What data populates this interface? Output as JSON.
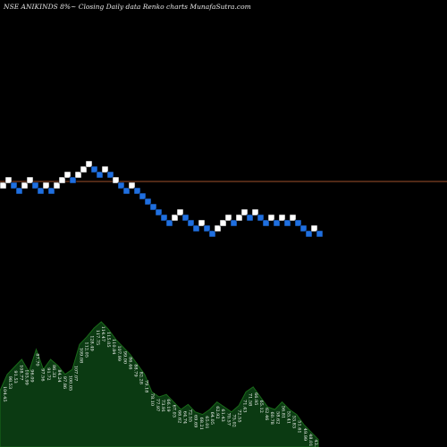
{
  "header": {
    "text": "NSE ANIKINDS 8%~  Closing  Daily data  Renko  charts MunafaSutra.com"
  },
  "chart_data": {
    "type": "renko",
    "symbol": "NSE ANIKINDS",
    "box_size_label": "8%",
    "bricks": [
      {
        "col": 0,
        "row": 6,
        "color": "white"
      },
      {
        "col": 1,
        "row": 5,
        "color": "white"
      },
      {
        "col": 2,
        "row": 6,
        "color": "blue"
      },
      {
        "col": 3,
        "row": 7,
        "color": "blue"
      },
      {
        "col": 4,
        "row": 6,
        "color": "white"
      },
      {
        "col": 5,
        "row": 5,
        "color": "white"
      },
      {
        "col": 6,
        "row": 6,
        "color": "blue"
      },
      {
        "col": 7,
        "row": 7,
        "color": "blue"
      },
      {
        "col": 8,
        "row": 6,
        "color": "white"
      },
      {
        "col": 9,
        "row": 7,
        "color": "blue"
      },
      {
        "col": 10,
        "row": 6,
        "color": "white"
      },
      {
        "col": 11,
        "row": 5,
        "color": "white"
      },
      {
        "col": 12,
        "row": 4,
        "color": "white"
      },
      {
        "col": 13,
        "row": 5,
        "color": "blue"
      },
      {
        "col": 14,
        "row": 4,
        "color": "white"
      },
      {
        "col": 15,
        "row": 3,
        "color": "white"
      },
      {
        "col": 16,
        "row": 2,
        "color": "white"
      },
      {
        "col": 17,
        "row": 3,
        "color": "blue"
      },
      {
        "col": 18,
        "row": 4,
        "color": "blue"
      },
      {
        "col": 19,
        "row": 3,
        "color": "white"
      },
      {
        "col": 20,
        "row": 4,
        "color": "blue"
      },
      {
        "col": 21,
        "row": 5,
        "color": "white"
      },
      {
        "col": 22,
        "row": 6,
        "color": "blue"
      },
      {
        "col": 23,
        "row": 7,
        "color": "blue"
      },
      {
        "col": 24,
        "row": 6,
        "color": "white"
      },
      {
        "col": 25,
        "row": 7,
        "color": "blue"
      },
      {
        "col": 26,
        "row": 8,
        "color": "blue"
      },
      {
        "col": 27,
        "row": 9,
        "color": "blue"
      },
      {
        "col": 28,
        "row": 10,
        "color": "blue"
      },
      {
        "col": 29,
        "row": 11,
        "color": "blue"
      },
      {
        "col": 30,
        "row": 12,
        "color": "blue"
      },
      {
        "col": 31,
        "row": 13,
        "color": "blue"
      },
      {
        "col": 32,
        "row": 12,
        "color": "white"
      },
      {
        "col": 33,
        "row": 11,
        "color": "white"
      },
      {
        "col": 34,
        "row": 12,
        "color": "blue"
      },
      {
        "col": 35,
        "row": 13,
        "color": "blue"
      },
      {
        "col": 36,
        "row": 14,
        "color": "blue"
      },
      {
        "col": 37,
        "row": 13,
        "color": "white"
      },
      {
        "col": 38,
        "row": 14,
        "color": "blue"
      },
      {
        "col": 39,
        "row": 15,
        "color": "blue"
      },
      {
        "col": 40,
        "row": 14,
        "color": "white"
      },
      {
        "col": 41,
        "row": 13,
        "color": "white"
      },
      {
        "col": 42,
        "row": 12,
        "color": "white"
      },
      {
        "col": 43,
        "row": 13,
        "color": "blue"
      },
      {
        "col": 44,
        "row": 12,
        "color": "white"
      },
      {
        "col": 45,
        "row": 11,
        "color": "white"
      },
      {
        "col": 46,
        "row": 12,
        "color": "blue"
      },
      {
        "col": 47,
        "row": 11,
        "color": "white"
      },
      {
        "col": 48,
        "row": 12,
        "color": "blue"
      },
      {
        "col": 49,
        "row": 13,
        "color": "blue"
      },
      {
        "col": 50,
        "row": 12,
        "color": "white"
      },
      {
        "col": 51,
        "row": 13,
        "color": "blue"
      },
      {
        "col": 52,
        "row": 12,
        "color": "white"
      },
      {
        "col": 53,
        "row": 13,
        "color": "blue"
      },
      {
        "col": 54,
        "row": 12,
        "color": "white"
      },
      {
        "col": 55,
        "row": 13,
        "color": "blue"
      },
      {
        "col": 56,
        "row": 14,
        "color": "blue"
      },
      {
        "col": 57,
        "row": 15,
        "color": "blue"
      },
      {
        "col": 58,
        "row": 14,
        "color": "white"
      },
      {
        "col": 59,
        "row": 15,
        "color": "blue"
      }
    ],
    "colors": {
      "background": "#000000",
      "up_brick": "#ffffff",
      "down_brick": "#1f6fe0",
      "reference_line": "#a0522d",
      "volume_fill": "#0b3a12",
      "volume_edge": "#1a6a1a"
    },
    "volume_profile": [
      45,
      58,
      64,
      70,
      60,
      78,
      62,
      70,
      65,
      58,
      62,
      82,
      88,
      95,
      100,
      94,
      86,
      80,
      74,
      66,
      58,
      44,
      40,
      42,
      36,
      30,
      34,
      28,
      26,
      30,
      36,
      32,
      28,
      33,
      44,
      48,
      40,
      32,
      30,
      36,
      30,
      26,
      18,
      12,
      6
    ],
    "volume_labels": [
      "104.45",
      "98.53",
      "91.53",
      "108.77",
      "103.99",
      "96.09",
      "87.70",
      "97.56",
      "91.72",
      "86.33",
      "84.24",
      "97.86",
      "100.05",
      "107.07",
      "109.08",
      "112.05",
      "128.49",
      "117.75",
      "114.47",
      "115.05",
      "110.84",
      "107.99",
      "99.00",
      "86.46",
      "88.79",
      "82.28",
      "79.18",
      "78.10",
      "77.97",
      "73.91",
      "66.19",
      "67.03",
      "66.62",
      "64.74",
      "72.55",
      "69.69",
      "68.21",
      "65.01",
      "64.05",
      "62.92",
      "61.43",
      "70.57",
      "75.02",
      "72.55",
      "71.43",
      "71.58",
      "66.95",
      "65.12",
      "62.46",
      "60.78",
      "58.62",
      "56.81",
      "55.41",
      "53.83",
      "51.61",
      "49.99",
      "48.01",
      "43.54"
    ]
  }
}
